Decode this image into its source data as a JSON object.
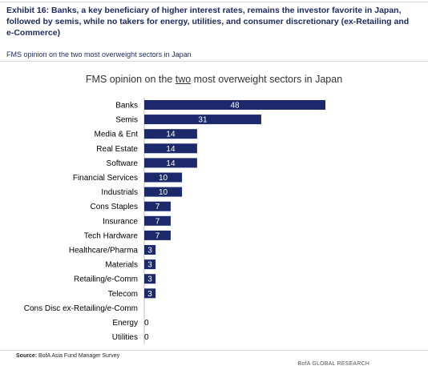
{
  "header": {
    "title": "Exhibit 16: Banks, a key beneficiary of higher interest rates, remains the investor favorite in Japan, followed by semis, while no takers for energy, utilities, and consumer discretionary (ex-Retailing and e-Commerce)",
    "subtitle": "FMS opinion on the two most overweight sectors in Japan"
  },
  "chart_title": {
    "before": "FMS opinion on the ",
    "underlined": "two",
    "after": " most overweight sectors in Japan"
  },
  "footer": {
    "source_label": "Source:",
    "source_text": " BofA Asia Fund Manager Survey",
    "brand": "BofA GLOBAL RESEARCH"
  },
  "colors": {
    "bar": "#1c2a6b",
    "bar_label": "#ffffff",
    "header_text": "#1c2a5c"
  },
  "chart_data": {
    "type": "bar",
    "orientation": "horizontal",
    "title": "FMS opinion on the two most overweight sectors in Japan",
    "categories": [
      "Banks",
      "Semis",
      "Media & Ent",
      "Real Estate",
      "Software",
      "Financial Services",
      "Industrials",
      "Cons Staples",
      "Insurance",
      "Tech Hardware",
      "Healthcare/Pharma",
      "Materials",
      "Retailing/e-Comm",
      "Telecom",
      "Cons Disc ex-Retailing/e-Comm",
      "Energy",
      "Utilities"
    ],
    "values": [
      48,
      31,
      14,
      14,
      14,
      10,
      10,
      7,
      7,
      7,
      3,
      3,
      3,
      3,
      null,
      0,
      0
    ],
    "value_labels": [
      "48",
      "31",
      "14",
      "14",
      "14",
      "10",
      "10",
      "7",
      "7",
      "7",
      "3",
      "3",
      "3",
      "3",
      "",
      "0",
      "0"
    ],
    "xlim": [
      0,
      48
    ],
    "grid": false,
    "legend": "none"
  }
}
